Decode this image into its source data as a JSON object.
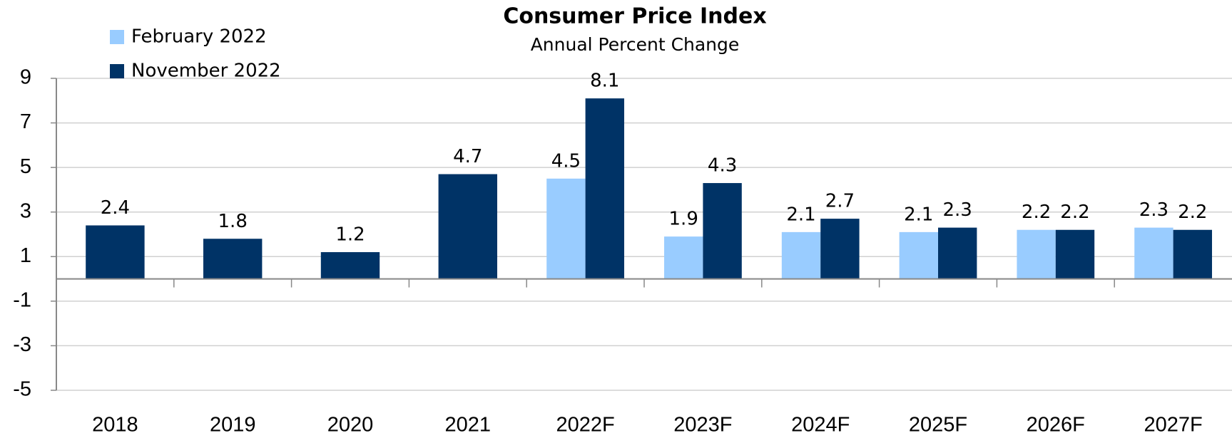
{
  "chart_data": {
    "type": "bar",
    "title": "Consumer Price Index",
    "subtitle": "Annual Percent Change",
    "categories": [
      "2018",
      "2019",
      "2020",
      "2021",
      "2022F",
      "2023F",
      "2024F",
      "2025F",
      "2026F",
      "2027F"
    ],
    "series": [
      {
        "name": "February 2022",
        "color": "#99ccff",
        "values": [
          null,
          null,
          null,
          null,
          4.5,
          1.9,
          2.1,
          2.1,
          2.2,
          2.3
        ]
      },
      {
        "name": "November 2022",
        "color": "#003366",
        "values": [
          2.4,
          1.8,
          1.2,
          4.7,
          8.1,
          4.3,
          2.7,
          2.3,
          2.2,
          2.2
        ]
      }
    ],
    "ylim": [
      -5,
      9
    ],
    "yticks": [
      -5,
      -3,
      -1,
      1,
      3,
      5,
      7,
      9
    ],
    "grid": true,
    "legend": "upper left"
  }
}
